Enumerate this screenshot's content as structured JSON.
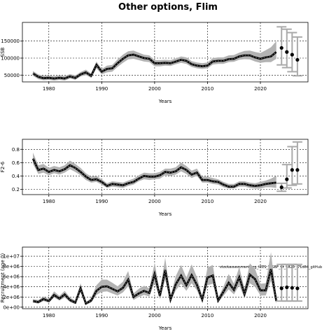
{
  "title": "Other options, Flim",
  "chart_data": [
    {
      "type": "line",
      "ylabel": "SSB",
      "xlabel": "Years",
      "xlim": [
        1975,
        2029
      ],
      "ylim": [
        30000,
        205000
      ],
      "xticks": [
        1980,
        1990,
        2000,
        2010,
        2020
      ],
      "yticks": [
        50000,
        100000,
        150000
      ],
      "ytick_labels": [
        "50000",
        "100000",
        "150000"
      ],
      "x": [
        1977,
        1978,
        1979,
        1980,
        1981,
        1982,
        1983,
        1984,
        1985,
        1986,
        1987,
        1988,
        1989,
        1990,
        1991,
        1992,
        1993,
        1994,
        1995,
        1996,
        1997,
        1998,
        1999,
        2000,
        2001,
        2002,
        2003,
        2004,
        2005,
        2006,
        2007,
        2008,
        2009,
        2010,
        2011,
        2012,
        2013,
        2014,
        2015,
        2016,
        2017,
        2018,
        2019,
        2020,
        2021,
        2022,
        2023
      ],
      "values": [
        55000,
        45000,
        41000,
        42000,
        40000,
        42000,
        40000,
        46000,
        42000,
        52000,
        58000,
        48000,
        80000,
        60000,
        68000,
        70000,
        85000,
        98000,
        108000,
        110000,
        105000,
        100000,
        98000,
        85000,
        85000,
        86000,
        85000,
        90000,
        95000,
        92000,
        82000,
        78000,
        76000,
        78000,
        90000,
        92000,
        92000,
        97000,
        98000,
        105000,
        108000,
        108000,
        102000,
        98000,
        102000,
        105000,
        118000
      ],
      "band_lower": [
        48000,
        38000,
        35000,
        36000,
        34000,
        36000,
        34000,
        40000,
        36000,
        46000,
        50000,
        42000,
        70000,
        52000,
        58000,
        60000,
        74000,
        86000,
        96000,
        98000,
        94000,
        90000,
        88000,
        76000,
        76000,
        78000,
        77000,
        82000,
        86000,
        83000,
        74000,
        70000,
        68000,
        70000,
        81000,
        83000,
        83000,
        88000,
        89000,
        95000,
        97000,
        96000,
        90000,
        86000,
        88000,
        88000,
        98000
      ],
      "band_upper": [
        62000,
        52000,
        48000,
        49000,
        47000,
        49000,
        47000,
        53000,
        49000,
        59000,
        66000,
        55000,
        90000,
        68000,
        78000,
        80000,
        96000,
        110000,
        120000,
        122000,
        116000,
        110000,
        108000,
        94000,
        94000,
        95000,
        94000,
        99000,
        105000,
        102000,
        91000,
        87000,
        85000,
        87000,
        100000,
        102000,
        102000,
        108000,
        109000,
        116000,
        121000,
        122000,
        118000,
        115000,
        123000,
        132000,
        150000
      ],
      "projection": {
        "x": [
          2024,
          2025,
          2026,
          2027
        ],
        "values": [
          130000,
          118000,
          110000,
          95000
        ],
        "lower": [
          80000,
          72000,
          60000,
          48000
        ],
        "upper": [
          192000,
          185000,
          175000,
          162000
        ]
      }
    },
    {
      "type": "line",
      "ylabel": "F2-6",
      "xlabel": "Years",
      "xlim": [
        1975,
        2029
      ],
      "ylim": [
        0.12,
        0.95
      ],
      "xticks": [
        1980,
        1990,
        2000,
        2010,
        2020
      ],
      "yticks": [
        0.2,
        0.4,
        0.6,
        0.8
      ],
      "ytick_labels": [
        "0.2",
        "0.4",
        "0.6",
        "0.8"
      ],
      "x": [
        1977,
        1978,
        1979,
        1980,
        1981,
        1982,
        1983,
        1984,
        1985,
        1986,
        1987,
        1988,
        1989,
        1990,
        1991,
        1992,
        1993,
        1994,
        1995,
        1996,
        1997,
        1998,
        1999,
        2000,
        2001,
        2002,
        2003,
        2004,
        2005,
        2006,
        2007,
        2008,
        2009,
        2010,
        2011,
        2012,
        2013,
        2014,
        2015,
        2016,
        2017,
        2018,
        2019,
        2020,
        2021,
        2022,
        2023
      ],
      "values": [
        0.66,
        0.49,
        0.51,
        0.46,
        0.49,
        0.47,
        0.5,
        0.56,
        0.52,
        0.46,
        0.39,
        0.34,
        0.35,
        0.31,
        0.25,
        0.28,
        0.27,
        0.26,
        0.29,
        0.31,
        0.36,
        0.4,
        0.39,
        0.39,
        0.41,
        0.46,
        0.45,
        0.47,
        0.53,
        0.49,
        0.42,
        0.45,
        0.34,
        0.34,
        0.32,
        0.31,
        0.27,
        0.24,
        0.24,
        0.28,
        0.28,
        0.26,
        0.25,
        0.26,
        0.28,
        0.29,
        0.3
      ],
      "band_lower": [
        0.58,
        0.43,
        0.45,
        0.41,
        0.44,
        0.42,
        0.45,
        0.5,
        0.46,
        0.41,
        0.34,
        0.3,
        0.31,
        0.27,
        0.22,
        0.24,
        0.23,
        0.22,
        0.25,
        0.27,
        0.32,
        0.35,
        0.34,
        0.35,
        0.36,
        0.41,
        0.4,
        0.42,
        0.47,
        0.43,
        0.37,
        0.4,
        0.3,
        0.3,
        0.28,
        0.27,
        0.23,
        0.21,
        0.21,
        0.24,
        0.24,
        0.22,
        0.21,
        0.21,
        0.23,
        0.23,
        0.22
      ],
      "band_upper": [
        0.75,
        0.56,
        0.58,
        0.52,
        0.55,
        0.53,
        0.56,
        0.63,
        0.58,
        0.52,
        0.44,
        0.39,
        0.4,
        0.35,
        0.29,
        0.32,
        0.31,
        0.3,
        0.33,
        0.36,
        0.41,
        0.45,
        0.44,
        0.44,
        0.46,
        0.51,
        0.51,
        0.53,
        0.6,
        0.55,
        0.48,
        0.51,
        0.39,
        0.39,
        0.37,
        0.35,
        0.31,
        0.28,
        0.28,
        0.32,
        0.32,
        0.3,
        0.29,
        0.31,
        0.33,
        0.36,
        0.4
      ],
      "projection": {
        "x": [
          2024,
          2025,
          2026,
          2027
        ],
        "values": [
          0.23,
          0.35,
          0.49,
          0.49
        ],
        "lower": [
          0.17,
          0.22,
          0.26,
          0.28
        ],
        "upper": [
          0.29,
          0.57,
          0.84,
          0.91
        ]
      }
    },
    {
      "type": "line",
      "ylabel": "Recruitment (age 0)",
      "xlabel": "Years",
      "xlim": [
        1975,
        2029
      ],
      "ylim": [
        -300000,
        11800000
      ],
      "xticks": [
        1980,
        1990,
        2000,
        2010,
        2020
      ],
      "yticks": [
        0,
        2000000,
        4000000,
        6000000,
        8000000,
        10000000
      ],
      "ytick_labels": [
        "0e+00",
        "2e+06",
        "4e+06",
        "6e+06",
        "8e+06",
        "1e+07"
      ],
      "annotation": "stockassessment.org_ICES_WGBF_fit_5826_f71d64_gitHub",
      "x": [
        1977,
        1978,
        1979,
        1980,
        1981,
        1982,
        1983,
        1984,
        1985,
        1986,
        1987,
        1988,
        1989,
        1990,
        1991,
        1992,
        1993,
        1994,
        1995,
        1996,
        1997,
        1998,
        1999,
        2000,
        2001,
        2002,
        2003,
        2004,
        2005,
        2006,
        2007,
        2008,
        2009,
        2010,
        2011,
        2012,
        2013,
        2014,
        2015,
        2016,
        2017,
        2018,
        2019,
        2020,
        2021,
        2022,
        2023
      ],
      "values": [
        1200000,
        1000000,
        1600000,
        1200000,
        2400000,
        1700000,
        2500000,
        1400000,
        900000,
        3700000,
        700000,
        1300000,
        3200000,
        4000000,
        4100000,
        3600000,
        3100000,
        3800000,
        5400000,
        2000000,
        2700000,
        3200000,
        2800000,
        6500000,
        2200000,
        7300000,
        1500000,
        4500000,
        6200000,
        4300000,
        6300000,
        4400000,
        1500000,
        5800000,
        6200000,
        1300000,
        3000000,
        4800000,
        3400000,
        5900000,
        2600000,
        6400000,
        5500000,
        3300000,
        3300000,
        7500000,
        1200000
      ],
      "band_lower": [
        900000,
        700000,
        1200000,
        900000,
        1900000,
        1300000,
        1900000,
        1000000,
        600000,
        2900000,
        500000,
        900000,
        2400000,
        3000000,
        3100000,
        2700000,
        2300000,
        2900000,
        4100000,
        1400000,
        2000000,
        2400000,
        2100000,
        4800000,
        1600000,
        5400000,
        1000000,
        3300000,
        4600000,
        3200000,
        4700000,
        3300000,
        1000000,
        4300000,
        4600000,
        900000,
        2200000,
        3500000,
        2500000,
        4300000,
        1800000,
        4700000,
        4000000,
        2300000,
        2300000,
        5200000,
        700000
      ],
      "band_upper": [
        1600000,
        1400000,
        2100000,
        1600000,
        3100000,
        2200000,
        3200000,
        1900000,
        1300000,
        4700000,
        1000000,
        1800000,
        4300000,
        5400000,
        5400000,
        4800000,
        4100000,
        5000000,
        7100000,
        2700000,
        3600000,
        4200000,
        3700000,
        8700000,
        3000000,
        9700000,
        2100000,
        6100000,
        8300000,
        5800000,
        8400000,
        5900000,
        2100000,
        7800000,
        8300000,
        1800000,
        4000000,
        6500000,
        4600000,
        7900000,
        3600000,
        8600000,
        7500000,
        4600000,
        4700000,
        10800000,
        2000000
      ],
      "projection": {
        "x": [
          2024,
          2025,
          2026,
          2027
        ],
        "values": [
          3700000,
          3900000,
          3800000,
          3700000
        ],
        "lower": [
          1200000,
          1200000,
          1200000,
          1200000
        ],
        "upper": [
          8400000,
          8400000,
          8400000,
          8400000
        ]
      }
    }
  ]
}
